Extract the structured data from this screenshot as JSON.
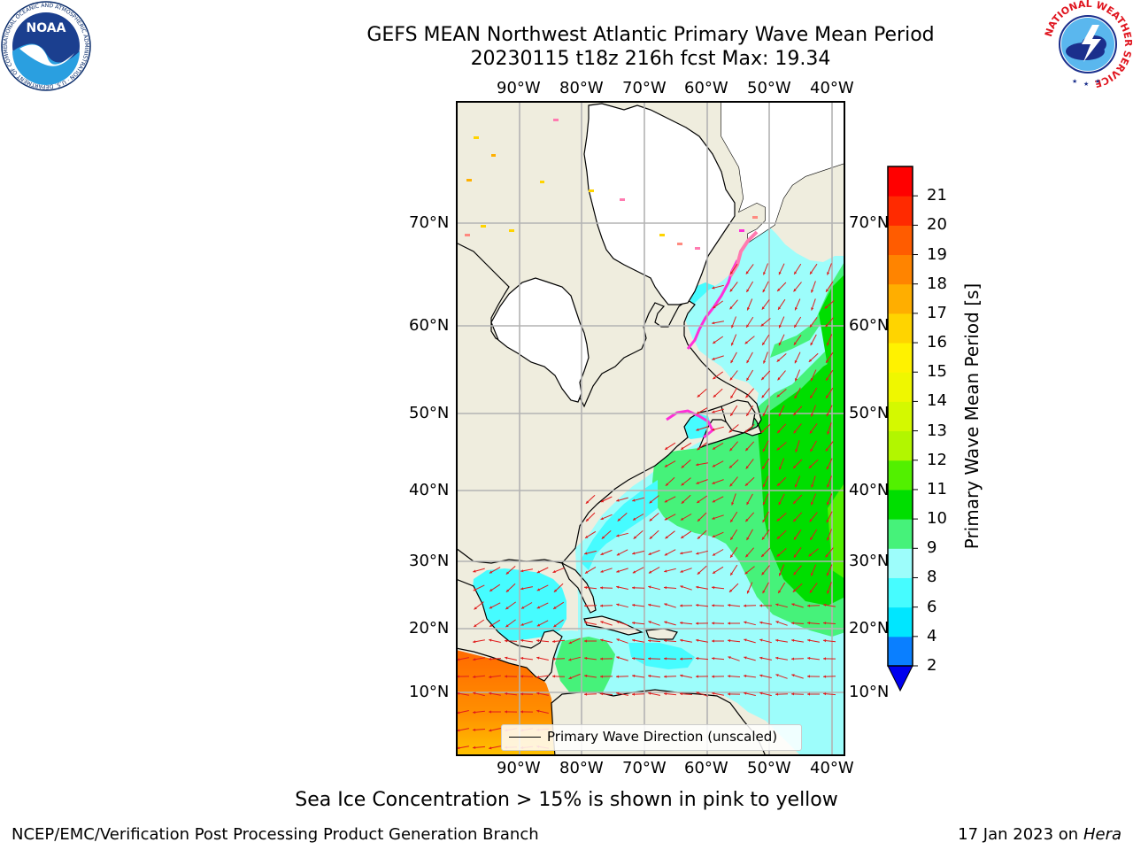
{
  "title": {
    "line1": "GEFS MEAN Northwest Atlantic Primary Wave Mean Period",
    "line2": "20230115 t18z 216h fcst   Max: 19.34"
  },
  "map": {
    "lon_labels_top": [
      "90°W",
      "80°W",
      "70°W",
      "60°W",
      "50°W",
      "40°W"
    ],
    "lon_labels_bottom": [
      "90°W",
      "80°W",
      "70°W",
      "60°W",
      "50°W",
      "40°W"
    ],
    "lat_labels_left": [
      "70°N",
      "60°N",
      "50°N",
      "40°N",
      "30°N",
      "20°N",
      "10°N"
    ],
    "lat_labels_right": [
      "70°N",
      "60°N",
      "50°N",
      "40°N",
      "30°N",
      "20°N",
      "10°N"
    ],
    "legend": "Primary Wave Direction (unscaled)",
    "land_color": "#efedde",
    "grid_color": "#b3b3b3",
    "arrow_color": "#e01b1b"
  },
  "colorbar": {
    "label": "Primary Wave Mean Period [s]",
    "ticks": [
      "2",
      "4",
      "6",
      "8",
      "9",
      "10",
      "11",
      "12",
      "13",
      "14",
      "15",
      "16",
      "17",
      "18",
      "19",
      "20",
      "21"
    ],
    "colors": [
      "#0a7fff",
      "#00e6ff",
      "#46fcff",
      "#9dfdfb",
      "#46f27a",
      "#00de00",
      "#52f000",
      "#b2f600",
      "#d4f900",
      "#eff700",
      "#fff200",
      "#ffd400",
      "#ffae00",
      "#ff8400",
      "#ff5c00",
      "#ff2a00",
      "#ff0000"
    ],
    "extend_color": "#0000ee"
  },
  "caption": "Sea Ice Concentration > 15% is shown in pink to yellow",
  "footer": {
    "left": "NCEP/EMC/Verification Post Processing Product Generation Branch",
    "right_prefix": "17 Jan 2023 on ",
    "right_host": "Hera"
  },
  "logos": {
    "noaa_text": "NOAA",
    "noaa_ring": "NATIONAL OCEANIC AND ATMOSPHERIC ADMINISTRATION · U.S. DEPARTMENT OF COMMERCE ·",
    "nws_ring": "NATIONAL WEATHER SERVICE"
  }
}
